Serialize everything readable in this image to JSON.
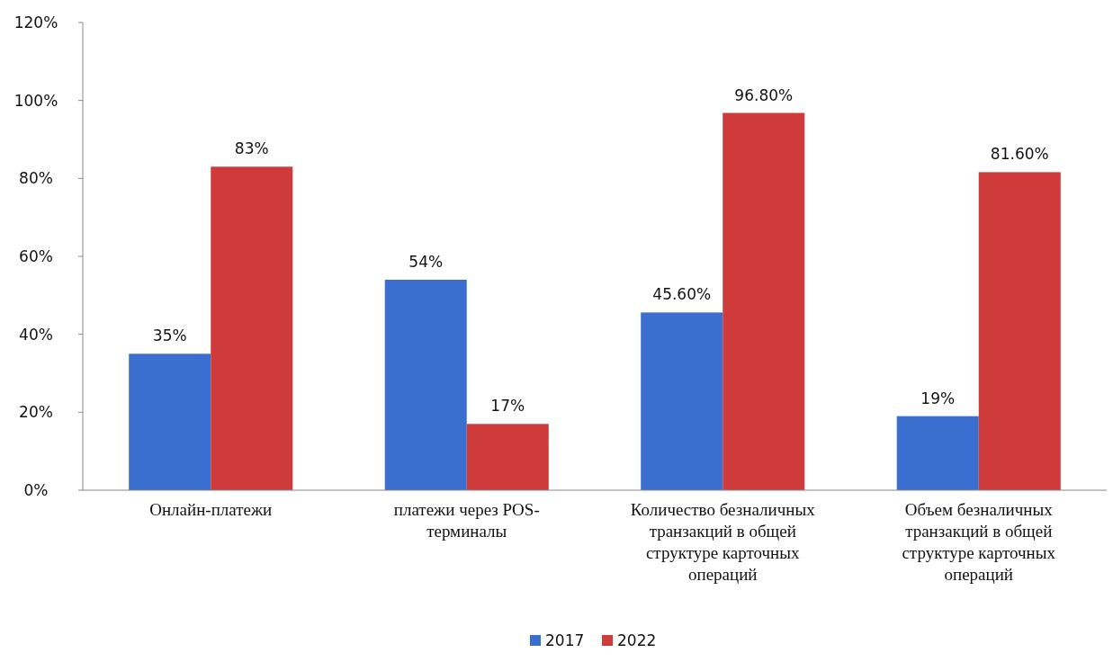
{
  "chart_data": {
    "type": "bar",
    "categories": [
      "Онлайн-платежи",
      "платежи через POS-терминалы",
      "Количество безналичных транзакций в общей структуре карточных операций",
      "Объем безналичных транзакций в общей структуре карточных операций"
    ],
    "series": [
      {
        "name": "2017",
        "color": "#3b6fcf",
        "values": [
          35,
          54,
          45.6,
          19
        ],
        "value_labels": [
          "35%",
          "54%",
          "45.60%",
          "19%"
        ]
      },
      {
        "name": "2022",
        "color": "#cf3a3a",
        "values": [
          83,
          17,
          96.8,
          81.6
        ],
        "value_labels": [
          "83%",
          "17%",
          "96.80%",
          "81.60%"
        ]
      }
    ],
    "ylim": [
      0,
      120
    ],
    "yticks": [
      {
        "value": 0,
        "label": "0%"
      },
      {
        "value": 20,
        "label": "20%"
      },
      {
        "value": 40,
        "label": "40%"
      },
      {
        "value": 60,
        "label": "60%"
      },
      {
        "value": 80,
        "label": "80%"
      },
      {
        "value": 100,
        "label": "100%"
      },
      {
        "value": 120,
        "label": "120%"
      }
    ],
    "legend": "bottom"
  }
}
